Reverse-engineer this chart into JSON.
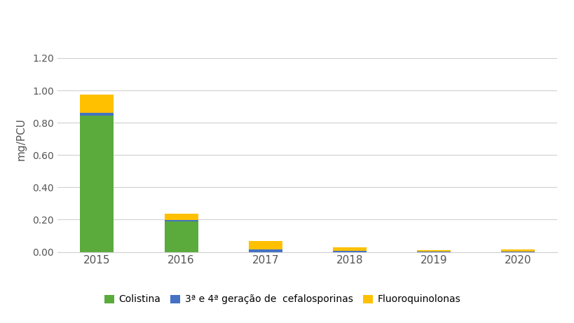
{
  "years": [
    "2015",
    "2016",
    "2017",
    "2018",
    "2019",
    "2020"
  ],
  "colistina": [
    0.845,
    0.19,
    0.0,
    0.0,
    0.0,
    0.0
  ],
  "cefalosporinas": [
    0.018,
    0.008,
    0.016,
    0.008,
    0.001,
    0.001
  ],
  "fluoroquinolonas": [
    0.112,
    0.038,
    0.052,
    0.022,
    0.01,
    0.014
  ],
  "color_colistina": "#5aab3c",
  "color_cefalosporinas": "#4472c4",
  "color_fluoroquinolonas": "#ffc000",
  "ylabel": "mg/PCU",
  "ylim": [
    0.0,
    1.4
  ],
  "yticks": [
    0.0,
    0.2,
    0.4,
    0.6,
    0.8,
    1.0,
    1.2
  ],
  "legend_colistina": "Colistina",
  "legend_cefalosporinas": "3ª e 4ª geração de  cefalosporinas",
  "legend_fluoroquinolonas": "Fluoroquinolonas",
  "background_color": "#ffffff",
  "grid_color": "#d0d0d0",
  "bar_width": 0.4
}
